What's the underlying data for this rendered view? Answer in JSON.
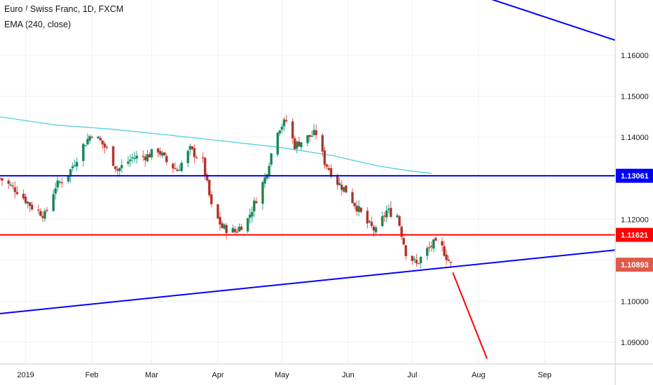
{
  "header": {
    "title": "Euro / Swiss Franc, 1D, FXCM",
    "indicator": "EMA (240, close)"
  },
  "chart_data": {
    "type": "candlestick",
    "x_domain": [
      "2018-12-20",
      "2019-10-04"
    ],
    "ylim": [
      1.0847,
      1.1735
    ],
    "y_ticks": [
      1.09,
      1.1,
      1.11,
      1.12,
      1.13,
      1.14,
      1.15,
      1.16
    ],
    "y_tick_labels": [
      "1.09000",
      "1.10000",
      "1.11000",
      "1.12000",
      "1.13000",
      "1.14000",
      "1.15000",
      "1.16000"
    ],
    "x_ticks": [
      {
        "date": "2019-01-01",
        "label": "2019"
      },
      {
        "date": "2019-02-01",
        "label": "Feb"
      },
      {
        "date": "2019-03-01",
        "label": "Mar"
      },
      {
        "date": "2019-04-01",
        "label": "Apr"
      },
      {
        "date": "2019-05-01",
        "label": "May"
      },
      {
        "date": "2019-06-01",
        "label": "Jun"
      },
      {
        "date": "2019-07-01",
        "label": "Jul"
      },
      {
        "date": "2019-08-01",
        "label": "Aug"
      },
      {
        "date": "2019-09-01",
        "label": "Sep"
      }
    ],
    "price_tags": [
      {
        "label": "1.13061",
        "value": 1.13061,
        "color": "#0000ff"
      },
      {
        "label": "1.11621",
        "value": 1.11621,
        "color": "#ff0000"
      },
      {
        "label": "1.10893",
        "value": 1.10893,
        "color": "#e05a4c"
      }
    ],
    "close_path": [
      [
        "2018-12-20",
        1.13
      ],
      [
        "2018-12-28",
        1.127
      ],
      [
        "2019-01-04",
        1.123
      ],
      [
        "2019-01-10",
        1.121
      ],
      [
        "2019-01-15",
        1.128
      ],
      [
        "2019-01-21",
        1.131
      ],
      [
        "2019-01-28",
        1.138
      ],
      [
        "2019-02-01",
        1.141
      ],
      [
        "2019-02-05",
        1.139
      ],
      [
        "2019-02-08",
        1.137
      ],
      [
        "2019-02-13",
        1.132
      ],
      [
        "2019-02-20",
        1.135
      ],
      [
        "2019-02-27",
        1.1355
      ],
      [
        "2019-03-04",
        1.137
      ],
      [
        "2019-03-08",
        1.134
      ],
      [
        "2019-03-13",
        1.132
      ],
      [
        "2019-03-19",
        1.137
      ],
      [
        "2019-03-25",
        1.134
      ],
      [
        "2019-03-29",
        1.123
      ],
      [
        "2019-04-03",
        1.118
      ],
      [
        "2019-04-09",
        1.117
      ],
      [
        "2019-04-15",
        1.12
      ],
      [
        "2019-04-19",
        1.125
      ],
      [
        "2019-04-23",
        1.13
      ],
      [
        "2019-04-29",
        1.142
      ],
      [
        "2019-05-03",
        1.144
      ],
      [
        "2019-05-07",
        1.138
      ],
      [
        "2019-05-13",
        1.14
      ],
      [
        "2019-05-17",
        1.141
      ],
      [
        "2019-05-21",
        1.134
      ],
      [
        "2019-05-27",
        1.129
      ],
      [
        "2019-05-31",
        1.127
      ],
      [
        "2019-06-05",
        1.123
      ],
      [
        "2019-06-10",
        1.119
      ],
      [
        "2019-06-14",
        1.117
      ],
      [
        "2019-06-19",
        1.122
      ],
      [
        "2019-06-24",
        1.121
      ],
      [
        "2019-06-28",
        1.112
      ],
      [
        "2019-07-03",
        1.109
      ],
      [
        "2019-07-07",
        1.112
      ],
      [
        "2019-07-11",
        1.114
      ],
      [
        "2019-07-15",
        1.113
      ],
      [
        "2019-07-19",
        1.1089
      ]
    ],
    "ema_240": [
      [
        "2018-12-20",
        1.145
      ],
      [
        "2019-01-15",
        1.143
      ],
      [
        "2019-02-10",
        1.142
      ],
      [
        "2019-03-10",
        1.1405
      ],
      [
        "2019-04-05",
        1.139
      ],
      [
        "2019-05-01",
        1.1375
      ],
      [
        "2019-05-25",
        1.1355
      ],
      [
        "2019-06-15",
        1.133
      ],
      [
        "2019-06-30",
        1.1318
      ],
      [
        "2019-07-10",
        1.1312
      ]
    ],
    "lines": [
      {
        "name": "",
        "color": "#0000ff",
        "from": [
          "2018-12-20",
          1.097
        ],
        "to": [
          "2019-10-04",
          1.1125
        ]
      },
      {
        "name": "",
        "color": "#0000ff",
        "from": [
          "2019-08-04",
          1.1742
        ],
        "to": [
          "2019-10-04",
          1.1637
        ]
      },
      {
        "name": "",
        "color": "#0000ff",
        "from": [
          "2018-12-20",
          1.13061
        ],
        "to": [
          "2019-10-04",
          1.13061
        ],
        "horizontal": true
      },
      {
        "name": "",
        "color": "#ff0000",
        "from": [
          "2018-12-20",
          1.11621
        ],
        "to": [
          "2019-10-04",
          1.11621
        ],
        "horizontal": true
      },
      {
        "name": "",
        "color": "#ff0000",
        "from": [
          "2019-07-20",
          1.107
        ],
        "to": [
          "2019-08-05",
          1.086
        ]
      }
    ],
    "colors": {
      "up": "#26a69a",
      "down": "#ef5350",
      "up_fill": "#2e7d32",
      "down_fill": "#8d3a2f",
      "ema": "#4dd0e1",
      "grid": "#eef0f3"
    },
    "grid": true
  }
}
